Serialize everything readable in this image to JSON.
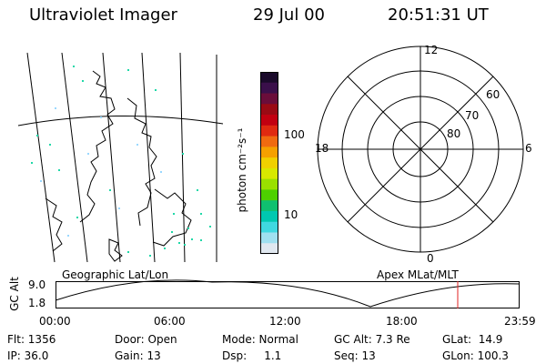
{
  "header": {
    "title": "Ultraviolet Imager",
    "date": "29 Jul 00",
    "time": "20:51:31 UT"
  },
  "colorbar": {
    "unit_label": "photon cm⁻²s⁻¹",
    "ticks": [
      "100",
      "10"
    ],
    "colors": [
      "#1a0a2a",
      "#3a0f4a",
      "#6a0d3a",
      "#9a0a14",
      "#c20010",
      "#e02a10",
      "#f06a10",
      "#f5a000",
      "#f0d000",
      "#d8e800",
      "#9ae000",
      "#4ed000",
      "#10c070",
      "#00c8b0",
      "#40d8e0",
      "#a0e0f0",
      "#e0e8f0"
    ]
  },
  "polar_grid": {
    "top_label": "12",
    "left_label": "18",
    "right_label": "6",
    "bottom_label": "0",
    "lat_labels": [
      "60",
      "70",
      "80"
    ]
  },
  "timeline": {
    "left_title": "Geographic Lat/Lon",
    "right_title": "Apex MLat/MLT",
    "axis_label": "GC Alt",
    "y_max": "9.0",
    "y_min": "1.8",
    "x_ticks": [
      "00:00",
      "06:00",
      "12:00",
      "18:00",
      "23:59"
    ],
    "marker_color": "#e02020"
  },
  "footer": {
    "col1": [
      "Flt: 1356",
      "IP: 36.0"
    ],
    "col2": [
      "Door: Open",
      "Gain: 13"
    ],
    "col3": [
      "Mode: Normal",
      "Dsp:     1.1"
    ],
    "col4": [
      "GC Alt: 7.3 Re",
      "Seq: 13"
    ],
    "col5": [
      "GLat:  14.9",
      "GLon: 100.3"
    ]
  }
}
